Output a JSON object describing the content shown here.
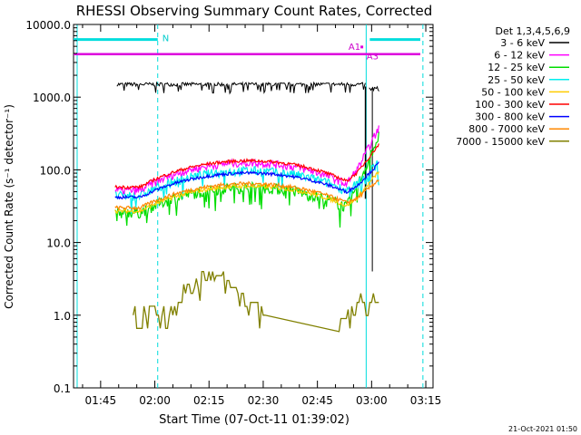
{
  "chart_data": {
    "type": "line",
    "title": "RHESSI Observing Summary Count Rates, Corrected",
    "xlabel": "Start Time (07-Oct-11 01:39:02)",
    "ylabel": "Corrected Count Rate (s⁻¹ detector⁻¹)",
    "ylog": true,
    "ylim": [
      0.1,
      10000
    ],
    "yticks": [
      {
        "value": 10000,
        "label": "10000.0"
      },
      {
        "value": 1000,
        "label": "1000.0"
      },
      {
        "value": 100,
        "label": "100.0"
      },
      {
        "value": 10,
        "label": "10.0"
      },
      {
        "value": 1,
        "label": "1.0"
      },
      {
        "value": 0.1,
        "label": "0.1"
      }
    ],
    "xlim_minutes": [
      97.5,
      197
    ],
    "xticks": [
      {
        "value": 105,
        "label": "01:45"
      },
      {
        "value": 120,
        "label": "02:00"
      },
      {
        "value": 135,
        "label": "02:15"
      },
      {
        "value": 150,
        "label": "02:30"
      },
      {
        "value": 165,
        "label": "02:45"
      },
      {
        "value": 180,
        "label": "03:00"
      },
      {
        "value": 195,
        "label": "03:15"
      }
    ],
    "legend_title": "Det 1,3,4,5,6,9",
    "legend_position": "right",
    "series": [
      {
        "name": "3 - 6 keV",
        "color": "#000000"
      },
      {
        "name": "6 - 12 keV",
        "color": "#ff00ff"
      },
      {
        "name": "12 - 25 keV",
        "color": "#00dd00"
      },
      {
        "name": "25 - 50 keV",
        "color": "#00eeee"
      },
      {
        "name": "50 - 100 keV",
        "color": "#ffcc00"
      },
      {
        "name": "100 - 300 keV",
        "color": "#ff0000"
      },
      {
        "name": "300 - 800 keV",
        "color": "#0000ff"
      },
      {
        "name": "800 - 7000 keV",
        "color": "#ff8800"
      },
      {
        "name": "7000 - 15000 keV",
        "color": "#808000"
      }
    ],
    "annotations": [
      {
        "label": "N",
        "color": "#00cccc"
      },
      {
        "label": "A1",
        "color": "#cc00cc"
      },
      {
        "label": "A3",
        "color": "#cc00cc"
      }
    ],
    "markers": {
      "night_bar_color": "#00dddd",
      "saa_line_color": "#dd00dd",
      "saa_line_y": 3900,
      "night_top_y": 6200,
      "vertical_lines_minutes": [
        98.5,
        120.8,
        178.5,
        194.2
      ]
    }
  },
  "footer": {
    "timestamp": "21-Oct-2021 01:50"
  }
}
